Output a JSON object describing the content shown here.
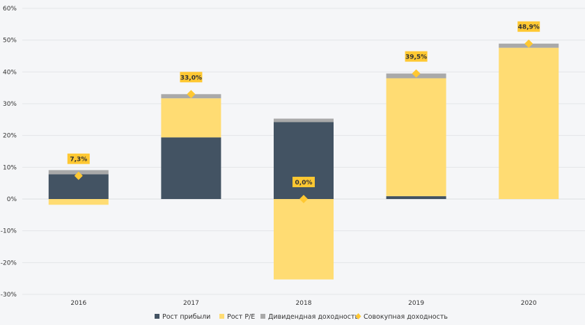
{
  "chart_data": {
    "type": "bar",
    "stacked": true,
    "categories": [
      "2016",
      "2017",
      "2018",
      "2019",
      "2020"
    ],
    "series": [
      {
        "name": "Рост прибыли",
        "color": "#435363",
        "values": [
          7.8,
          19.4,
          24.2,
          0.9,
          0.0
        ]
      },
      {
        "name": "Рост P/E",
        "color": "#ffdc73",
        "values": [
          -1.8,
          12.3,
          -25.3,
          37.1,
          47.6
        ]
      },
      {
        "name": "Дивидендная доходность",
        "color": "#a9a9a9",
        "values": [
          1.3,
          1.3,
          1.1,
          1.5,
          1.3
        ]
      }
    ],
    "line_series": {
      "name": "Совокупная доходность",
      "color": "#ffc832",
      "marker": "diamond",
      "values": [
        7.3,
        33.0,
        0.0,
        39.5,
        48.9
      ],
      "labels": [
        "7,3%",
        "33,0%",
        "0,0%",
        "39,5%",
        "48,9%"
      ]
    },
    "yticks": [
      60,
      50,
      40,
      30,
      20,
      10,
      0,
      -10,
      -20,
      -30
    ],
    "ytick_labels": [
      "60%",
      "50%",
      "40%",
      "30%",
      "20%",
      "10%",
      "0%",
      "-10%",
      "-20%",
      "-30%"
    ],
    "ylim": [
      -30,
      60
    ],
    "grid": true,
    "legend_position": "bottom",
    "title": "",
    "xlabel": "",
    "ylabel": ""
  }
}
